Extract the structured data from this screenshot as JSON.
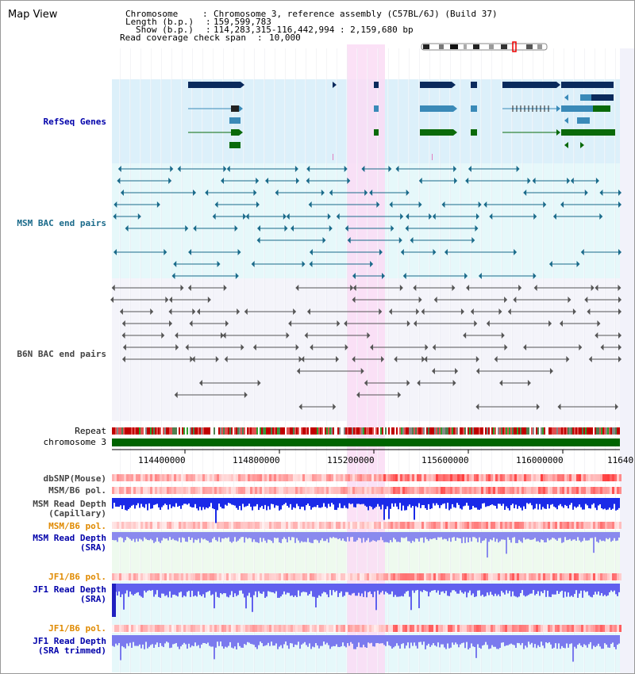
{
  "title": "Map View",
  "header": {
    "chromosome_label": "Chromosome",
    "chromosome_value": "Chromosome 3, reference assembly (C57BL/6J) (Build 37)",
    "length_label": "Length (b.p.)",
    "length_value": "159,599,783",
    "show_label": "Show (b.p.)",
    "show_value": "114,283,315-116,442,994 : 2,159,680 bp",
    "coverage_label": "Read coverage check span",
    "coverage_value": "10,000"
  },
  "tracks": {
    "refseq": "RefSeq Genes",
    "msm_bac": "MSM BAC end pairs",
    "b6n_bac": "B6N BAC end pairs",
    "repeat": "Repeat",
    "chromosome": "chromosome 3",
    "dbsnp": "dbSNP(Mouse)",
    "msm_pol_1": "MSM/B6 pol.",
    "msm_depth_cap_1": "MSM Read Depth",
    "msm_depth_cap_2": "(Capillary)",
    "msm_pol_2": "MSM/B6 pol.",
    "msm_depth_sra_1": "MSM Read Depth",
    "msm_depth_sra_2": "(SRA)",
    "jf1_pol_1": "JF1/B6 pol.",
    "jf1_depth_sra_1": "JF1 Read Depth",
    "jf1_depth_sra_2": "(SRA)",
    "jf1_pol_2": "JF1/B6 pol.",
    "jf1_depth_trim_1": "JF1 Read Depth",
    "jf1_depth_trim_2": "(SRA trimmed)"
  },
  "ruler": {
    "ticks": [
      "114400000",
      "114800000",
      "115200000",
      "115600000",
      "116000000",
      "11640"
    ]
  },
  "colors": {
    "refseq_bg": "#dcf0fa",
    "msm_bg": "#e6f8fa",
    "highlight": "#fadcf5",
    "gene_navy": "#0a2a5c",
    "gene_teal": "#3a8ab8",
    "gene_green": "#0a6a0a",
    "msm_bac": "#1a6a8a",
    "b6n_bac": "#555555",
    "label_refseq": "#0000aa",
    "label_msm": "#1a6a8a",
    "label_b6n": "#444444",
    "label_pol": "#e08a00",
    "label_depth": "#0000aa"
  }
}
